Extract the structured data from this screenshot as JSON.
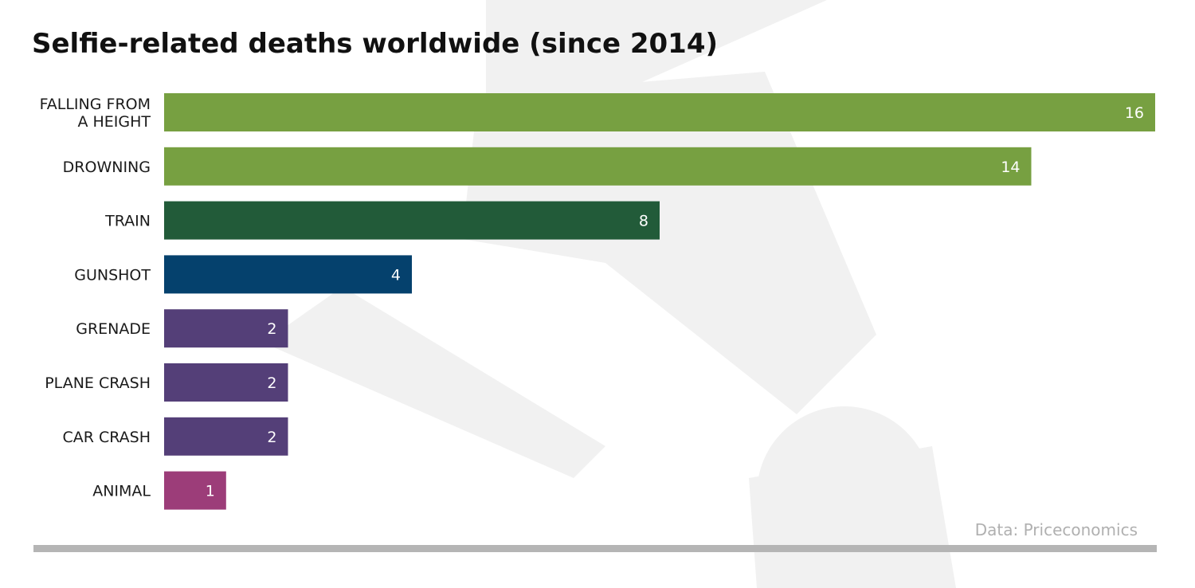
{
  "chart_data": {
    "type": "bar",
    "orientation": "horizontal",
    "title": "Selfie-related deaths worldwide (since 2014)",
    "categories": [
      "FALLING FROM A HEIGHT",
      "DROWNING",
      "TRAIN",
      "GUNSHOT",
      "GRENADE",
      "PLANE CRASH",
      "CAR CRASH",
      "ANIMAL"
    ],
    "category_lines": [
      [
        "FALLING FROM",
        "A HEIGHT"
      ],
      [
        "DROWNING"
      ],
      [
        "TRAIN"
      ],
      [
        "GUNSHOT"
      ],
      [
        "GRENADE"
      ],
      [
        "PLANE CRASH"
      ],
      [
        "CAR CRASH"
      ],
      [
        "ANIMAL"
      ]
    ],
    "values": [
      16,
      14,
      8,
      4,
      2,
      2,
      2,
      1
    ],
    "bar_colors": [
      "#77a041",
      "#77a041",
      "#225b39",
      "#05416d",
      "#543f78",
      "#543f78",
      "#543f78",
      "#9c3d79"
    ],
    "xlim": [
      0,
      16
    ],
    "xlabel": "",
    "ylabel": "",
    "grid": false,
    "legend": "none",
    "source": "Data: Priceconomics"
  },
  "colors": {
    "background": "#ffffff",
    "watermark": "#f0f0f0",
    "rule": "#b5b5b5"
  },
  "background_icon": "selfie-hand-watermark-icon"
}
